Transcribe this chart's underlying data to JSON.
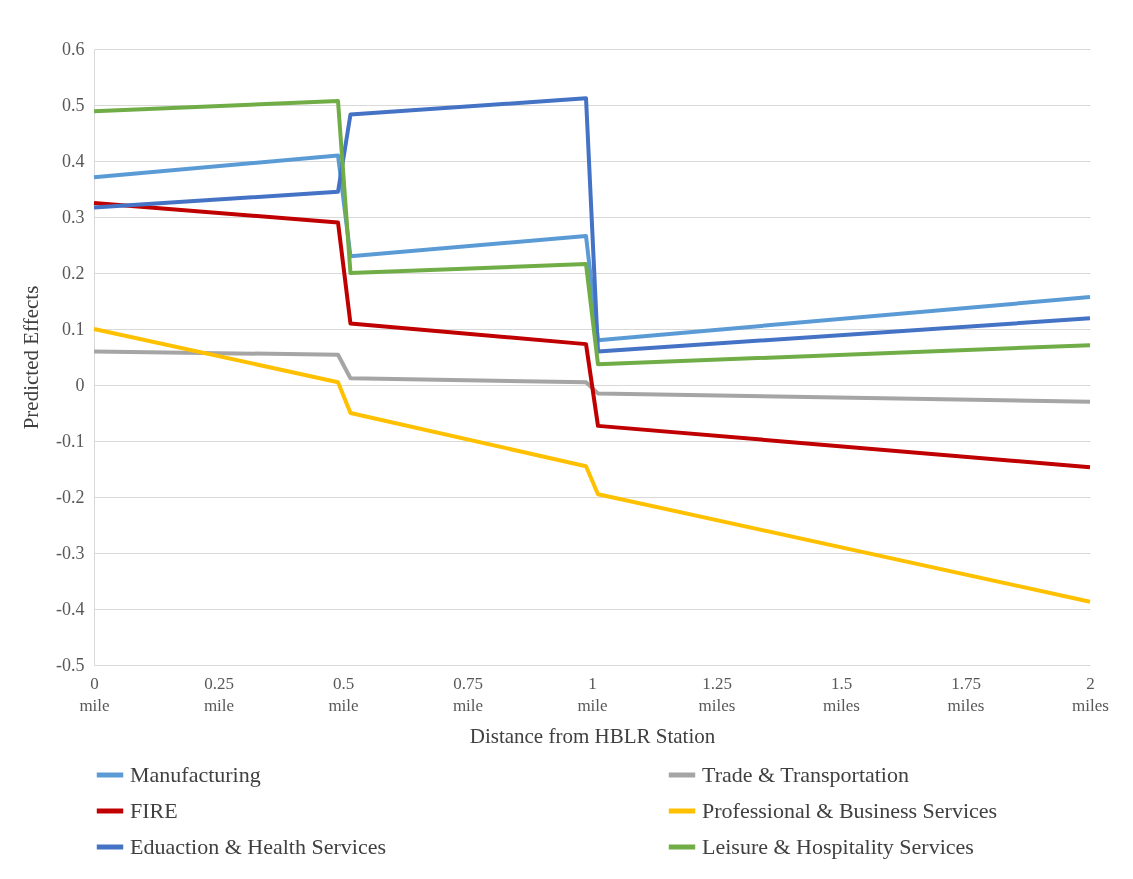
{
  "chart_data": {
    "type": "line",
    "xlabel": "Distance from HBLR Station",
    "ylabel": "Predicted Effects",
    "x": [
      0,
      0.49,
      0.515,
      0.988,
      1.012,
      2
    ],
    "xlim": [
      0,
      2
    ],
    "xticks": [
      {
        "value": 0,
        "label": "0 mile"
      },
      {
        "value": 0.25,
        "label": "0.25 mile"
      },
      {
        "value": 0.5,
        "label": "0.5 mile"
      },
      {
        "value": 0.75,
        "label": "0.75 mile"
      },
      {
        "value": 1,
        "label": "1 mile"
      },
      {
        "value": 1.25,
        "label": "1.25 miles"
      },
      {
        "value": 1.5,
        "label": "1.5 miles"
      },
      {
        "value": 1.75,
        "label": "1.75 miles"
      },
      {
        "value": 2,
        "label": "2 miles"
      }
    ],
    "ylim": [
      -0.5,
      0.6
    ],
    "yticks": [
      -0.5,
      -0.4,
      -0.3,
      -0.2,
      -0.1,
      0,
      0.1,
      0.2,
      0.3,
      0.4,
      0.5,
      0.6
    ],
    "grid": "y",
    "legend": "bottom",
    "line_style": "solid",
    "marker": "none",
    "series": [
      {
        "name": "Manufacturing",
        "color": "#5b9bd5",
        "values": [
          0.371,
          0.41,
          0.23,
          0.266,
          0.08,
          0.157
        ]
      },
      {
        "name": "Trade & Transportation",
        "color": "#a5a5a5",
        "values": [
          0.06,
          0.054,
          0.012,
          0.005,
          -0.015,
          -0.03
        ]
      },
      {
        "name": "FIRE",
        "color": "#c00000",
        "values": [
          0.325,
          0.29,
          0.11,
          0.073,
          -0.073,
          -0.147
        ]
      },
      {
        "name": "Professional & Business Services",
        "color": "#ffc000",
        "values": [
          0.1,
          0.005,
          -0.05,
          -0.145,
          -0.195,
          -0.387
        ]
      },
      {
        "name": "Eduaction & Health Services",
        "color": "#4472c4",
        "values": [
          0.317,
          0.345,
          0.483,
          0.512,
          0.06,
          0.119
        ]
      },
      {
        "name": "Leisure & Hospitality Services",
        "color": "#70ad47",
        "values": [
          0.489,
          0.507,
          0.2,
          0.216,
          0.037,
          0.071
        ]
      }
    ]
  }
}
